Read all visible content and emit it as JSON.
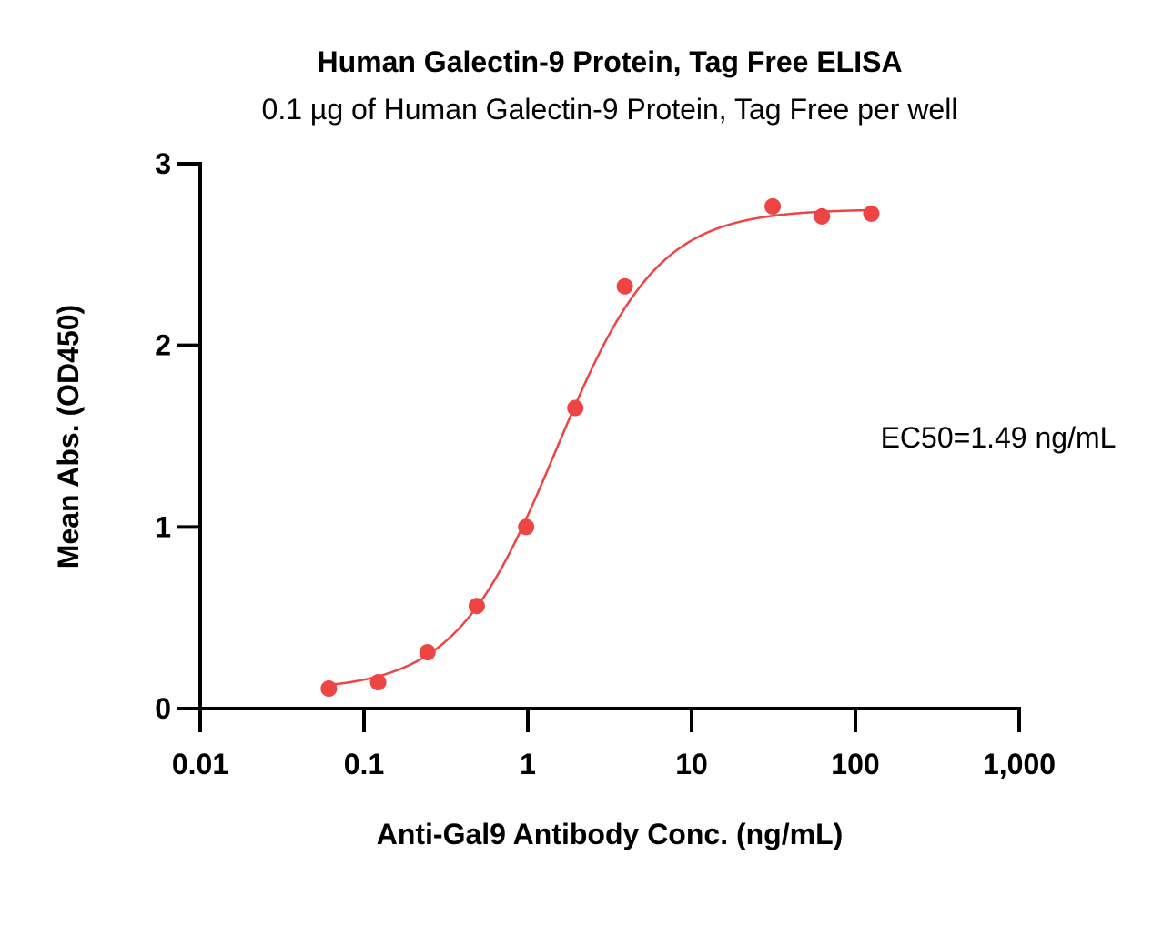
{
  "chart_data": {
    "type": "scatter",
    "title": "Human Galectin-9 Protein, Tag Free ELISA",
    "subtitle": "0.1 µg of Human Galectin-9 Protein, Tag Free per well",
    "xlabel": "Anti-Gal9 Antibody Conc. (ng/mL)",
    "ylabel": "Mean Abs. (OD450)",
    "x_scale": "log",
    "xlim": [
      0.01,
      1000
    ],
    "ylim": [
      0,
      3
    ],
    "x_ticks": [
      {
        "value": 0.01,
        "label": "0.01"
      },
      {
        "value": 0.1,
        "label": "0.1"
      },
      {
        "value": 1,
        "label": "1"
      },
      {
        "value": 10,
        "label": "10"
      },
      {
        "value": 100,
        "label": "100"
      },
      {
        "value": 1000,
        "label": "1,000"
      }
    ],
    "y_ticks": [
      {
        "value": 0,
        "label": "0"
      },
      {
        "value": 1,
        "label": "1"
      },
      {
        "value": 2,
        "label": "2"
      },
      {
        "value": 3,
        "label": "3"
      }
    ],
    "series": [
      {
        "x": [
          0.061,
          0.122,
          0.244,
          0.488,
          0.977,
          1.95,
          3.91,
          31.25,
          62.5,
          125
        ],
        "y": [
          0.11,
          0.145,
          0.31,
          0.565,
          1.0,
          1.655,
          2.325,
          2.765,
          2.71,
          2.725
        ],
        "color": "#ef4444"
      }
    ],
    "fit": {
      "model": "4PL",
      "bottom": 0.1,
      "top": 2.75,
      "ec50": 1.49,
      "hill": 1.4,
      "x_range": [
        0.061,
        125
      ],
      "color": "#ef4444"
    },
    "annotation": "EC50=1.49 ng/mL",
    "grid": false,
    "legend": "none"
  }
}
